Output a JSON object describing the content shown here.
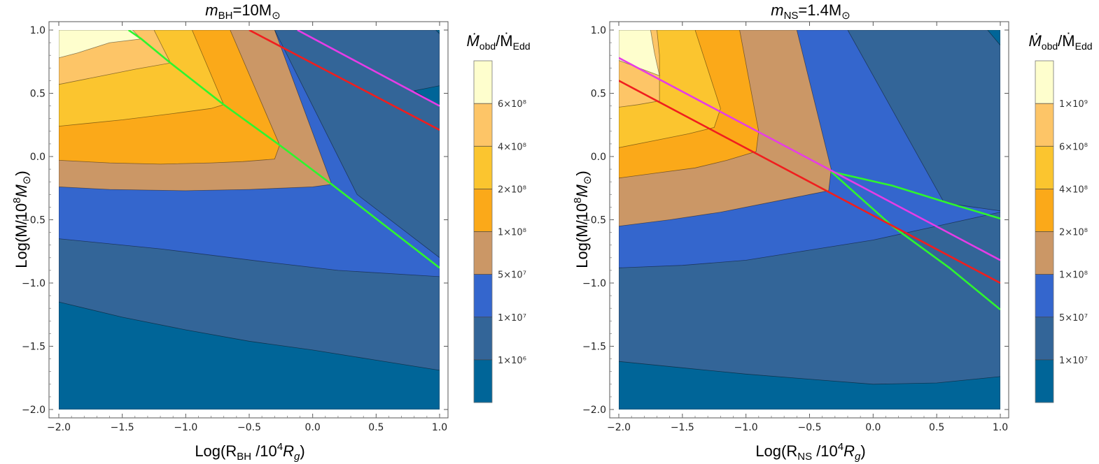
{
  "chart_data": [
    {
      "type": "contour",
      "title": {
        "main": "m",
        "sub": "BH",
        "rest": "=10M",
        "sun": "⊙"
      },
      "xlabel": {
        "pre": "Log(R",
        "sub": "BH",
        "post": "/10",
        "sup": "4",
        "var": "R",
        "varsub": "g",
        "close": ")"
      },
      "ylabel": {
        "pre": "Log(M/10",
        "sup": "8",
        "var": "M",
        "sun": "⊙",
        "close": ")"
      },
      "xlim": [
        -2.0,
        1.0
      ],
      "ylim": [
        -2.0,
        1.0
      ],
      "xticks": [
        "−2.0",
        "−1.5",
        "−1.0",
        "−0.5",
        "0.0",
        "0.5",
        "1.0"
      ],
      "yticks": [
        "−2.0",
        "−1.5",
        "−1.0",
        "−0.5",
        "0.0",
        "0.5",
        "1.0"
      ],
      "colorbar_title": {
        "a": "Ṁ",
        "asub": "obd",
        "b": "/Ṁ",
        "bsub": "Edd"
      },
      "colorbar_ticks": [
        "6×10⁸",
        "4×10⁸",
        "2×10⁸",
        "1×10⁸",
        "5×10⁷",
        "1×10⁷",
        "1×10⁶"
      ],
      "colorbar_colors": [
        "#fefecd",
        "#fdc567",
        "#fbc52f",
        "#fba919",
        "#cb9766",
        "#3466cd",
        "#336598",
        "#006598"
      ],
      "regions": [
        {
          "color": "#336598",
          "pts": [
            [
              -2,
              1
            ],
            [
              1,
              1
            ],
            [
              1,
              -2
            ],
            [
              -2,
              -2
            ]
          ]
        },
        {
          "color": "#3466cd",
          "pts": [
            [
              -2,
              -0.65
            ],
            [
              -1.2,
              -0.73
            ],
            [
              -0.4,
              -0.83
            ],
            [
              0.2,
              -0.9
            ],
            [
              1,
              -0.95
            ],
            [
              1,
              -0.8
            ],
            [
              0.35,
              -0.3
            ],
            [
              -0.3,
              1
            ],
            [
              -2,
              1
            ]
          ]
        },
        {
          "color": "#cb9766",
          "pts": [
            [
              -2,
              -0.24
            ],
            [
              -1.6,
              -0.26
            ],
            [
              -1,
              -0.27
            ],
            [
              -0.5,
              -0.26
            ],
            [
              0,
              -0.24
            ],
            [
              0.15,
              -0.22
            ],
            [
              -0.3,
              1
            ],
            [
              -2,
              1
            ]
          ]
        },
        {
          "color": "#fba919",
          "pts": [
            [
              -2,
              -0.03
            ],
            [
              -1.6,
              -0.05
            ],
            [
              -1.2,
              -0.06
            ],
            [
              -0.8,
              -0.05
            ],
            [
              -0.55,
              -0.04
            ],
            [
              -0.3,
              -0.02
            ],
            [
              -0.26,
              0.09
            ],
            [
              -0.65,
              1
            ],
            [
              -2,
              1
            ]
          ]
        },
        {
          "color": "#fbc52f",
          "pts": [
            [
              -2,
              0.24
            ],
            [
              -1.5,
              0.29
            ],
            [
              -1.1,
              0.34
            ],
            [
              -0.8,
              0.38
            ],
            [
              -0.7,
              0.41
            ],
            [
              -0.95,
              1
            ],
            [
              -2,
              1
            ]
          ]
        },
        {
          "color": "#fdc567",
          "pts": [
            [
              -2,
              0.57
            ],
            [
              -1.7,
              0.63
            ],
            [
              -1.4,
              0.69
            ],
            [
              -1.12,
              0.74
            ],
            [
              -1.25,
              1
            ],
            [
              -2,
              1
            ]
          ]
        },
        {
          "color": "#fefecd",
          "pts": [
            [
              -2,
              0.78
            ],
            [
              -1.85,
              0.82
            ],
            [
              -1.6,
              0.9
            ],
            [
              -1.35,
              0.93
            ],
            [
              -1.42,
              1
            ],
            [
              -2,
              1
            ]
          ]
        },
        {
          "color": "#006598",
          "pts": [
            [
              -2,
              -1.15
            ],
            [
              -1.5,
              -1.27
            ],
            [
              -1,
              -1.37
            ],
            [
              -0.5,
              -1.46
            ],
            [
              0,
              -1.53
            ],
            [
              0.5,
              -1.61
            ],
            [
              1,
              -1.69
            ],
            [
              1,
              -2
            ],
            [
              -2,
              -2
            ]
          ]
        },
        {
          "color": "#006598",
          "pts": [
            [
              0.8,
              0.52
            ],
            [
              1,
              0.56
            ],
            [
              1,
              0.4
            ]
          ]
        },
        {
          "color": "#006598",
          "pts": [
            [
              0.97,
              1
            ],
            [
              1,
              1
            ],
            [
              1,
              0.97
            ]
          ]
        }
      ],
      "lines": [
        {
          "name": "green-line",
          "color": "#2ef52e",
          "pts": [
            [
              -1.45,
              1
            ],
            [
              -1.35,
              0.93
            ],
            [
              -1.12,
              0.74
            ],
            [
              -0.7,
              0.41
            ],
            [
              -0.26,
              0.09
            ],
            [
              0.15,
              -0.22
            ],
            [
              1,
              -0.88
            ]
          ]
        },
        {
          "name": "red-line",
          "color": "#f01e1e",
          "pts": [
            [
              -0.5,
              1
            ],
            [
              1,
              0.21
            ]
          ]
        },
        {
          "name": "magenta-line",
          "color": "#e63ce6",
          "pts": [
            [
              -0.12,
              1
            ],
            [
              1,
              0.4
            ]
          ]
        }
      ]
    },
    {
      "type": "contour",
      "title": {
        "main": "m",
        "sub": "NS",
        "rest": "=1.4M",
        "sun": "⊙"
      },
      "xlabel": {
        "pre": "Log(R",
        "sub": "NS",
        "post": "/10",
        "sup": "4",
        "var": "R",
        "varsub": "g",
        "close": ")"
      },
      "ylabel": {
        "pre": "Log(M/10",
        "sup": "8",
        "var": "M",
        "sun": "⊙",
        "close": ")"
      },
      "xlim": [
        -2.0,
        1.0
      ],
      "ylim": [
        -2.0,
        1.0
      ],
      "xticks": [
        "−2.0",
        "−1.5",
        "−1.0",
        "−0.5",
        "0.0",
        "0.5",
        "1.0"
      ],
      "yticks": [
        "−2.0",
        "−1.5",
        "−1.0",
        "−0.5",
        "0.0",
        "0.5",
        "1.0"
      ],
      "colorbar_title": {
        "a": "Ṁ",
        "asub": "obd",
        "b": "/Ṁ",
        "bsub": "Edd"
      },
      "colorbar_ticks": [
        "1×10⁹",
        "6×10⁸",
        "4×10⁸",
        "2×10⁸",
        "1×10⁸",
        "5×10⁷",
        "1×10⁷"
      ],
      "colorbar_colors": [
        "#fefecd",
        "#fdc567",
        "#fbc52f",
        "#fba919",
        "#cb9766",
        "#3466cd",
        "#336598",
        "#006598"
      ],
      "regions": [
        {
          "color": "#336598",
          "pts": [
            [
              -2,
              1
            ],
            [
              1,
              1
            ],
            [
              1,
              -2
            ],
            [
              -2,
              -2
            ]
          ]
        },
        {
          "color": "#3466cd",
          "pts": [
            [
              -2,
              -0.88
            ],
            [
              -1.5,
              -0.86
            ],
            [
              -1,
              -0.82
            ],
            [
              -0.5,
              -0.74
            ],
            [
              0,
              -0.66
            ],
            [
              0.5,
              -0.55
            ],
            [
              1,
              -0.44
            ],
            [
              1,
              -0.43
            ],
            [
              0.65,
              -0.38
            ],
            [
              0.55,
              -0.35
            ],
            [
              -0.2,
              1
            ],
            [
              -2,
              1
            ]
          ]
        },
        {
          "color": "#cb9766",
          "pts": [
            [
              -2,
              -0.55
            ],
            [
              -1.6,
              -0.5
            ],
            [
              -1.2,
              -0.44
            ],
            [
              -0.8,
              -0.36
            ],
            [
              -0.5,
              -0.3
            ],
            [
              -0.35,
              -0.27
            ],
            [
              -0.33,
              -0.1
            ],
            [
              -0.6,
              1
            ],
            [
              -2,
              1
            ]
          ]
        },
        {
          "color": "#fba919",
          "pts": [
            [
              -2,
              -0.17
            ],
            [
              -1.7,
              -0.13
            ],
            [
              -1.4,
              -0.09
            ],
            [
              -1.15,
              -0.03
            ],
            [
              -0.92,
              0.04
            ],
            [
              -0.9,
              0.2
            ],
            [
              -1.05,
              1
            ],
            [
              -2,
              1
            ]
          ]
        },
        {
          "color": "#fbc52f",
          "pts": [
            [
              -2,
              0.07
            ],
            [
              -1.7,
              0.13
            ],
            [
              -1.45,
              0.18
            ],
            [
              -1.25,
              0.23
            ],
            [
              -1.2,
              0.38
            ],
            [
              -1.4,
              1
            ],
            [
              -2,
              1
            ]
          ]
        },
        {
          "color": "#fdc567",
          "pts": [
            [
              -2,
              0.39
            ],
            [
              -1.85,
              0.41
            ],
            [
              -1.68,
              0.44
            ],
            [
              -1.68,
              0.8
            ],
            [
              -1.7,
              1
            ],
            [
              -2,
              1
            ]
          ]
        },
        {
          "color": "#fefecd",
          "pts": [
            [
              -2,
              0.76
            ],
            [
              -1.68,
              0.64
            ],
            [
              -1.72,
              0.82
            ],
            [
              -1.75,
              1
            ],
            [
              -2,
              1
            ]
          ]
        },
        {
          "color": "#006598",
          "pts": [
            [
              -2,
              -1.62
            ],
            [
              -1.5,
              -1.67
            ],
            [
              -1,
              -1.72
            ],
            [
              -0.5,
              -1.76
            ],
            [
              0,
              -1.8
            ],
            [
              0.5,
              -1.79
            ],
            [
              1,
              -1.74
            ],
            [
              1,
              -2
            ],
            [
              -2,
              -2
            ]
          ]
        },
        {
          "color": "#006598",
          "pts": [
            [
              0.9,
              1
            ],
            [
              1,
              1
            ],
            [
              1,
              0.88
            ]
          ]
        }
      ],
      "lines": [
        {
          "name": "green-line",
          "color": "#2ef52e",
          "pts": [
            [
              -0.33,
              -0.12
            ],
            [
              0.15,
              -0.23
            ],
            [
              0.6,
              -0.37
            ],
            [
              1,
              -0.49
            ]
          ]
        },
        {
          "name": "green-line-2",
          "color": "#2ef52e",
          "pts": [
            [
              -0.33,
              -0.12
            ],
            [
              0.15,
              -0.55
            ],
            [
              0.6,
              -0.88
            ],
            [
              1,
              -1.21
            ]
          ]
        },
        {
          "name": "red-line",
          "color": "#f01e1e",
          "pts": [
            [
              -2,
              0.6
            ],
            [
              1,
              -1.0
            ]
          ]
        },
        {
          "name": "magenta-line",
          "color": "#e63ce6",
          "pts": [
            [
              -2,
              0.78
            ],
            [
              1,
              -0.82
            ]
          ]
        }
      ]
    }
  ]
}
